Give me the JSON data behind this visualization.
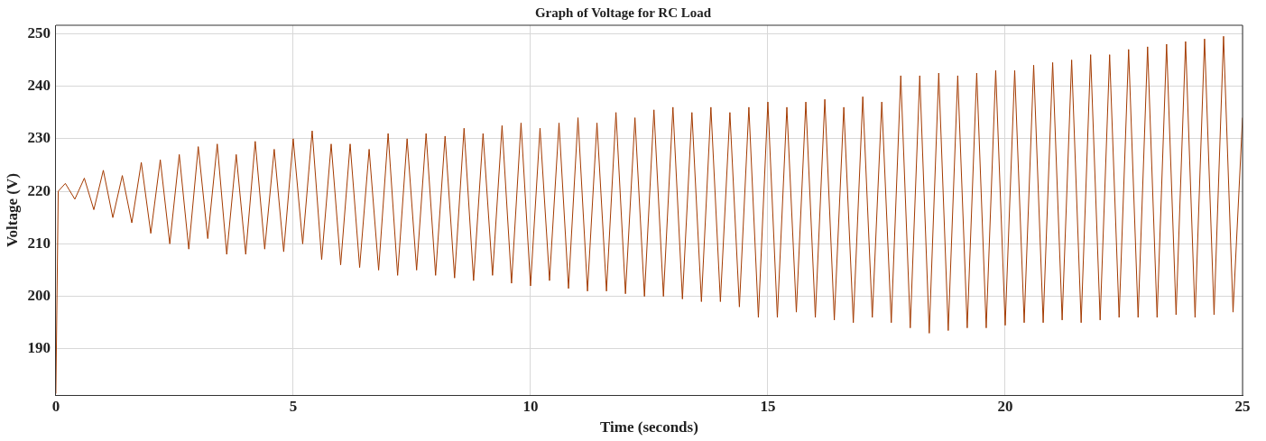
{
  "chart_data": {
    "type": "line",
    "title": "Graph of Voltage for RC Load",
    "xlabel": "Time (seconds)",
    "ylabel": "Voltage (V)",
    "xlim": [
      0,
      25
    ],
    "xticks": [
      0,
      5,
      10,
      15,
      20,
      25
    ],
    "ylim": [
      181.2,
      251.6
    ],
    "yticks": [
      190,
      200,
      210,
      220,
      230,
      240,
      250
    ],
    "grid": true,
    "legend": false,
    "marker": "none",
    "line_style": "solid",
    "series": [
      {
        "color": "#a33a00",
        "x": [
          0,
          0.05,
          0.2,
          0.4,
          0.6,
          0.8,
          1.0,
          1.2,
          1.4,
          1.6,
          1.8,
          2.0,
          2.2,
          2.4,
          2.6,
          2.8,
          3.0,
          3.2,
          3.4,
          3.6,
          3.8,
          4.0,
          4.2,
          4.4,
          4.6,
          4.8,
          5.0,
          5.2,
          5.4,
          5.6,
          5.8,
          6.0,
          6.2,
          6.4,
          6.6,
          6.8,
          7.0,
          7.2,
          7.4,
          7.6,
          7.8,
          8.0,
          8.2,
          8.4,
          8.6,
          8.8,
          9.0,
          9.2,
          9.4,
          9.6,
          9.8,
          10.0,
          10.2,
          10.4,
          10.6,
          10.8,
          11.0,
          11.2,
          11.4,
          11.6,
          11.8,
          12.0,
          12.2,
          12.4,
          12.6,
          12.8,
          13.0,
          13.2,
          13.4,
          13.6,
          13.8,
          14.0,
          14.2,
          14.4,
          14.6,
          14.8,
          15.0,
          15.2,
          15.4,
          15.6,
          15.8,
          16.0,
          16.2,
          16.4,
          16.6,
          16.8,
          17.0,
          17.2,
          17.4,
          17.6,
          17.8,
          18.0,
          18.2,
          18.4,
          18.6,
          18.8,
          19.0,
          19.2,
          19.4,
          19.6,
          19.8,
          20.0,
          20.2,
          20.4,
          20.6,
          20.8,
          21.0,
          21.2,
          21.4,
          21.6,
          21.8,
          22.0,
          22.2,
          22.4,
          22.6,
          22.8,
          23.0,
          23.2,
          23.4,
          23.6,
          23.8,
          24.0,
          24.2,
          24.4,
          24.6,
          24.8,
          25.0
        ],
        "values": [
          181.5,
          220,
          221.5,
          218.5,
          222.5,
          216.5,
          224,
          215,
          223,
          214,
          225.5,
          212,
          226,
          210,
          227,
          209,
          228.5,
          211,
          229,
          208,
          227,
          208,
          229.5,
          209,
          228,
          208.5,
          230,
          210,
          231.5,
          207,
          229,
          206,
          229,
          205.5,
          228,
          205,
          231,
          204,
          230,
          205,
          231,
          204,
          230.5,
          203.5,
          232,
          203,
          231,
          204,
          232.5,
          202.5,
          233,
          202,
          232,
          203,
          233,
          201.5,
          234,
          201,
          233,
          201,
          235,
          200.5,
          234,
          200,
          235.5,
          200,
          236,
          199.5,
          235,
          199,
          236,
          199,
          235,
          198,
          236,
          196,
          237,
          196,
          236,
          197,
          237,
          196,
          237.5,
          195.5,
          236,
          195,
          238,
          196,
          237,
          195,
          242,
          194,
          242,
          193,
          242.5,
          193.5,
          242,
          194,
          242.5,
          194,
          243,
          194.5,
          243,
          195,
          244,
          195,
          244.5,
          195.5,
          245,
          195,
          246,
          195.5,
          246,
          196,
          247,
          196,
          247.5,
          196,
          248,
          196.5,
          248.5,
          196,
          249,
          196.5,
          249.5,
          197,
          234
        ]
      }
    ]
  }
}
